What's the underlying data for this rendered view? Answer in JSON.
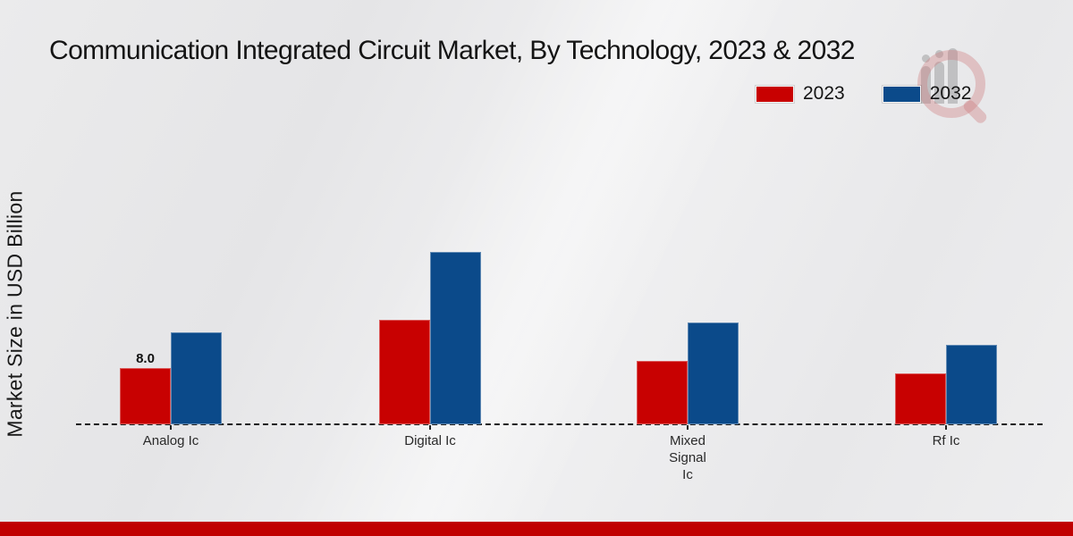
{
  "title": "Communication Integrated Circuit Market, By Technology, 2023 & 2032",
  "y_axis_label": "Market Size in USD Billion",
  "legend": {
    "items": [
      {
        "label": "2023",
        "color": "#c80101"
      },
      {
        "label": "2032",
        "color": "#0b4a8a"
      }
    ]
  },
  "colors": {
    "series_2023": "#c80101",
    "series_2032": "#0b4a8a",
    "footer_strip": "#c00101",
    "background": "#eaeaec",
    "text": "#141414"
  },
  "watermark": "market-research-magnifier-logo",
  "chart_data": {
    "type": "bar",
    "title": "Communication Integrated Circuit Market, By Technology, 2023 & 2032",
    "xlabel": "",
    "ylabel": "Market Size in USD Billion",
    "categories": [
      "Analog Ic",
      "Digital Ic",
      "Mixed Signal Ic",
      "Rf Ic"
    ],
    "series": [
      {
        "name": "2023",
        "color": "#c80101",
        "values": [
          8.0,
          14.9,
          9.0,
          7.2
        ]
      },
      {
        "name": "2032",
        "color": "#0b4a8a",
        "values": [
          13.1,
          24.5,
          14.5,
          11.3
        ]
      }
    ],
    "data_labels": [
      {
        "series_index": 0,
        "category_index": 0,
        "text": "8.0"
      }
    ],
    "ylim": [
      0,
      26
    ],
    "grid": false,
    "y_ticks_visible": false,
    "legend_position": "top-right",
    "baseline_style": "dashed"
  }
}
